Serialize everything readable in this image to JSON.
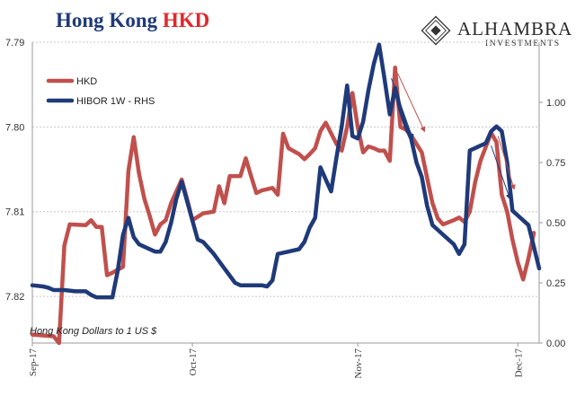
{
  "header": {
    "title_main": "Hong Kong",
    "title_ccy": "HKD",
    "brand_name": "ALHAMBRA",
    "brand_sub": "INVESTMENTS"
  },
  "note": "Hong Kong Dollars to 1 US $",
  "colors": {
    "hkd": "#c0504d",
    "hibor": "#1f3a79",
    "arrow_red": "#c0504d",
    "arrow_blue": "#1f3a79",
    "grid": "#c8c8c8",
    "title_blue": "#1f3a79",
    "title_red": "#e3262c"
  },
  "chart_data": {
    "type": "line",
    "legend_position": "top-left",
    "grid": true,
    "x_ticks": [
      "Sep-17",
      "Oct-17",
      "Nov-17",
      "Dec-17"
    ],
    "x_tick_positions": [
      0,
      30,
      61,
      91
    ],
    "left_axis": {
      "ticks": [
        "7.79",
        "7.80",
        "7.81",
        "7.82"
      ],
      "min": 7.79,
      "max": 7.8255,
      "inverted": true
    },
    "right_axis": {
      "ticks": [
        "0.00",
        "0.25",
        "0.50",
        "0.75",
        "1.00"
      ],
      "min": 0,
      "max": 1.25
    },
    "series": [
      {
        "name": "HKD",
        "axis": "left",
        "points": [
          [
            0,
            7.8245
          ],
          [
            4,
            7.8247
          ],
          [
            5,
            7.8255
          ],
          [
            6,
            7.814
          ],
          [
            7,
            7.8115
          ],
          [
            10,
            7.8116
          ],
          [
            11,
            7.811
          ],
          [
            12,
            7.8118
          ],
          [
            13,
            7.8118
          ],
          [
            14,
            7.8175
          ],
          [
            15,
            7.8172
          ],
          [
            17,
            7.8165
          ],
          [
            18,
            7.8052
          ],
          [
            19,
            7.8012
          ],
          [
            20,
            7.8055
          ],
          [
            21,
            7.8085
          ],
          [
            22,
            7.8105
          ],
          [
            23,
            7.8127
          ],
          [
            24,
            7.8115
          ],
          [
            25,
            7.811
          ],
          [
            26,
            7.809
          ],
          [
            28,
            7.8062
          ],
          [
            29,
            7.8085
          ],
          [
            30,
            7.811
          ],
          [
            32,
            7.8102
          ],
          [
            34,
            7.81
          ],
          [
            35,
            7.807
          ],
          [
            36,
            7.809
          ],
          [
            37,
            7.8058
          ],
          [
            39,
            7.8058
          ],
          [
            40,
            7.8037
          ],
          [
            41,
            7.8058
          ],
          [
            42,
            7.8078
          ],
          [
            43,
            7.8075
          ],
          [
            45,
            7.8072
          ],
          [
            46,
            7.808
          ],
          [
            47,
            7.8008
          ],
          [
            48,
            7.8025
          ],
          [
            50,
            7.8032
          ],
          [
            51,
            7.8038
          ],
          [
            52,
            7.8032
          ],
          [
            53,
            7.8025
          ],
          [
            54,
            7.8005
          ],
          [
            55,
            7.7995
          ],
          [
            57,
            7.802
          ],
          [
            58,
            7.8028
          ],
          [
            59,
            7.8
          ],
          [
            60,
            7.796
          ],
          [
            61,
            7.8
          ],
          [
            62,
            7.803
          ],
          [
            63,
            7.8023
          ],
          [
            64,
            7.8025
          ],
          [
            65,
            7.8028
          ],
          [
            66,
            7.8028
          ],
          [
            67,
            7.804
          ],
          [
            68,
            7.793
          ],
          [
            69,
            7.8
          ],
          [
            70,
            7.8003
          ],
          [
            71,
            7.801
          ],
          [
            73,
            7.803
          ],
          [
            74,
            7.806
          ],
          [
            75,
            7.809
          ],
          [
            76,
            7.8108
          ],
          [
            77,
            7.8115
          ],
          [
            79,
            7.811
          ],
          [
            80,
            7.8107
          ],
          [
            81,
            7.8112
          ],
          [
            82,
            7.81
          ],
          [
            83,
            7.8065
          ],
          [
            84,
            7.804
          ],
          [
            86,
            7.8007
          ],
          [
            87,
            7.8018
          ],
          [
            88,
            7.808
          ],
          [
            89,
            7.81
          ],
          [
            90,
            7.8133
          ],
          [
            91,
            7.816
          ],
          [
            92,
            7.818
          ],
          [
            93,
            7.8155
          ],
          [
            94,
            7.8125
          ]
        ]
      },
      {
        "name": "HIBOR 1W - RHS",
        "axis": "right",
        "points": [
          [
            0,
            0.24
          ],
          [
            2,
            0.235
          ],
          [
            3,
            0.23
          ],
          [
            4,
            0.22
          ],
          [
            6,
            0.22
          ],
          [
            8,
            0.215
          ],
          [
            10,
            0.215
          ],
          [
            11,
            0.2
          ],
          [
            12,
            0.19
          ],
          [
            15,
            0.19
          ],
          [
            16,
            0.3
          ],
          [
            17,
            0.45
          ],
          [
            18,
            0.52
          ],
          [
            19,
            0.44
          ],
          [
            20,
            0.41
          ],
          [
            21,
            0.4
          ],
          [
            23,
            0.38
          ],
          [
            24,
            0.38
          ],
          [
            25,
            0.42
          ],
          [
            26,
            0.5
          ],
          [
            27,
            0.6
          ],
          [
            28,
            0.67
          ],
          [
            31,
            0.43
          ],
          [
            32,
            0.42
          ],
          [
            34,
            0.37
          ],
          [
            36,
            0.31
          ],
          [
            38,
            0.25
          ],
          [
            39,
            0.24
          ],
          [
            40,
            0.24
          ],
          [
            43,
            0.24
          ],
          [
            44,
            0.235
          ],
          [
            45,
            0.26
          ],
          [
            46,
            0.37
          ],
          [
            48,
            0.38
          ],
          [
            50,
            0.39
          ],
          [
            51,
            0.42
          ],
          [
            52,
            0.48
          ],
          [
            53,
            0.52
          ],
          [
            54,
            0.73
          ],
          [
            55,
            0.68
          ],
          [
            56,
            0.63
          ],
          [
            57,
            0.77
          ],
          [
            58,
            0.9
          ],
          [
            59,
            1.07
          ],
          [
            60,
            0.86
          ],
          [
            61,
            0.85
          ],
          [
            62,
            0.92
          ],
          [
            63,
            1.05
          ],
          [
            64,
            1.16
          ],
          [
            65,
            1.24
          ],
          [
            66,
            1.1
          ],
          [
            67,
            0.95
          ],
          [
            68,
            1.06
          ],
          [
            69,
            0.97
          ],
          [
            70,
            0.9
          ],
          [
            71,
            0.85
          ],
          [
            72,
            0.75
          ],
          [
            73,
            0.69
          ],
          [
            74,
            0.57
          ],
          [
            75,
            0.49
          ],
          [
            76,
            0.47
          ],
          [
            77,
            0.45
          ],
          [
            79,
            0.41
          ],
          [
            80,
            0.37
          ],
          [
            81,
            0.41
          ],
          [
            82,
            0.8
          ],
          [
            83,
            0.81
          ],
          [
            84,
            0.82
          ],
          [
            85,
            0.83
          ],
          [
            86,
            0.88
          ],
          [
            87,
            0.9
          ],
          [
            88,
            0.88
          ],
          [
            89,
            0.75
          ],
          [
            90,
            0.55
          ],
          [
            91,
            0.53
          ],
          [
            92,
            0.51
          ],
          [
            93,
            0.49
          ],
          [
            94,
            0.4
          ],
          [
            95,
            0.31
          ]
        ]
      }
    ],
    "annotations": [
      {
        "type": "arrow",
        "color": "red",
        "from": [
          68.5,
          1.12
        ],
        "to": [
          73.5,
          0.88
        ]
      },
      {
        "type": "arrow",
        "color": "blue",
        "from": [
          67.3,
          1.1
        ],
        "to": [
          71.3,
          0.85
        ]
      },
      {
        "type": "arrow",
        "color": "red",
        "from": [
          87.3,
          0.86
        ],
        "to": [
          90.3,
          0.64
        ]
      },
      {
        "type": "arrow",
        "color": "blue",
        "from": [
          86.0,
          0.82
        ],
        "to": [
          89.5,
          0.6
        ]
      }
    ]
  }
}
